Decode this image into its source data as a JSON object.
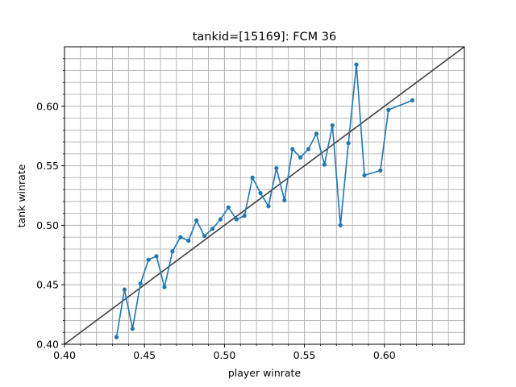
{
  "chart_data": {
    "type": "line",
    "title": "tankid=[15169]: FCM 36",
    "xlabel": "player winrate",
    "ylabel": "tank winrate",
    "xlim": [
      0.4,
      0.65
    ],
    "ylim": [
      0.4,
      0.65
    ],
    "x_ticks": [
      "0.40",
      "0.45",
      "0.50",
      "0.55",
      "0.60"
    ],
    "y_ticks": [
      "0.40",
      "0.45",
      "0.50",
      "0.55",
      "0.60"
    ],
    "grid": true,
    "reference_line": {
      "from": [
        0.4,
        0.4
      ],
      "to": [
        0.65,
        0.65
      ],
      "color": "#404040"
    },
    "series": [
      {
        "color": "#1f77b4",
        "points": [
          [
            0.4325,
            0.406
          ],
          [
            0.4375,
            0.446
          ],
          [
            0.4425,
            0.413
          ],
          [
            0.4475,
            0.451
          ],
          [
            0.4525,
            0.471
          ],
          [
            0.4575,
            0.474
          ],
          [
            0.4625,
            0.448
          ],
          [
            0.4675,
            0.478
          ],
          [
            0.4725,
            0.49
          ],
          [
            0.4775,
            0.487
          ],
          [
            0.4825,
            0.504
          ],
          [
            0.4875,
            0.491
          ],
          [
            0.4925,
            0.497
          ],
          [
            0.4975,
            0.505
          ],
          [
            0.5025,
            0.515
          ],
          [
            0.5075,
            0.505
          ],
          [
            0.5125,
            0.508
          ],
          [
            0.5175,
            0.54
          ],
          [
            0.5225,
            0.527
          ],
          [
            0.5275,
            0.516
          ],
          [
            0.5325,
            0.548
          ],
          [
            0.5375,
            0.521
          ],
          [
            0.5425,
            0.564
          ],
          [
            0.5475,
            0.557
          ],
          [
            0.5525,
            0.564
          ],
          [
            0.5575,
            0.577
          ],
          [
            0.5625,
            0.551
          ],
          [
            0.5675,
            0.584
          ],
          [
            0.5725,
            0.5
          ],
          [
            0.5775,
            0.569
          ],
          [
            0.5825,
            0.635
          ],
          [
            0.5875,
            0.542
          ],
          [
            0.5975,
            0.546
          ],
          [
            0.6025,
            0.597
          ],
          [
            0.6175,
            0.605
          ]
        ]
      }
    ]
  }
}
